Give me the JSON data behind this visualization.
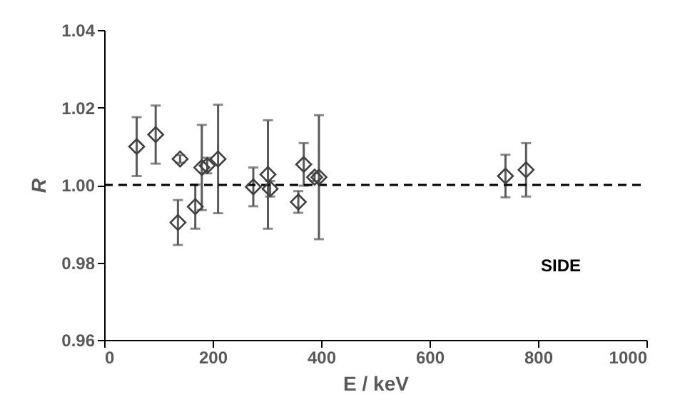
{
  "chart_data": {
    "type": "scatter",
    "xlabel": "E / keV",
    "ylabel": "R",
    "x": [
      60,
      95,
      140,
      136,
      168,
      180,
      190,
      210,
      275,
      302,
      306,
      358,
      368,
      388,
      396,
      740,
      778
    ],
    "values": [
      1.0099,
      1.013,
      1.0067,
      0.9903,
      0.9944,
      1.0045,
      1.005,
      1.0067,
      0.9995,
      1.0027,
      0.999,
      0.9956,
      1.0053,
      1.002,
      1.002,
      1.0023,
      1.0039
    ],
    "errors": [
      0.0076,
      0.0075,
      0.001,
      0.0058,
      0.0057,
      0.011,
      0.002,
      0.014,
      0.005,
      0.014,
      0.002,
      0.0028,
      0.0055,
      0.001,
      0.016,
      0.0055,
      0.0069
    ],
    "color": "#404040",
    "marker": "diamond",
    "xlim": [
      0,
      1000
    ],
    "xticks": [
      0,
      200,
      400,
      600,
      800,
      1000
    ],
    "ylim": [
      0.96,
      1.04
    ],
    "yticks": [
      {
        "value": 0.96,
        "label": "0.96"
      },
      {
        "value": 0.98,
        "label": "0.98"
      },
      {
        "value": 1.0,
        "label": "1.00"
      },
      {
        "value": 1.02,
        "label": "1.02"
      },
      {
        "value": 1.04,
        "label": "1.04"
      }
    ],
    "ref_lines": [
      {
        "axis": "y",
        "value": 1.0,
        "line_style": "dashed",
        "color": "#000000"
      }
    ],
    "annotations": [
      "SIDE"
    ],
    "grid": false
  }
}
